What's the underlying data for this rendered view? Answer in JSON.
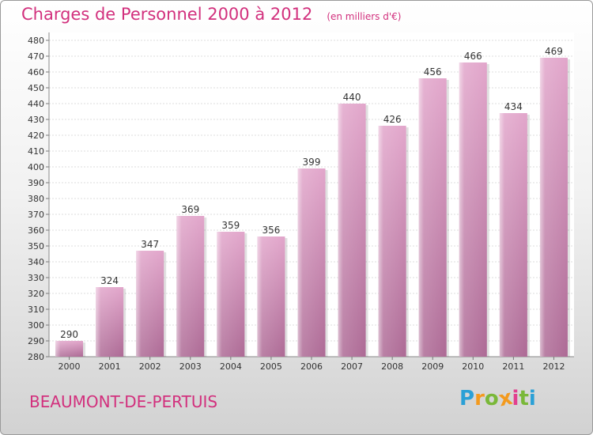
{
  "title": "Charges de Personnel 2000 à 2012",
  "subtitle": "(en milliers d'€)",
  "commune": "BEAUMONT-DE-PERTUIS",
  "logo": {
    "letters": [
      "P",
      "r",
      "o",
      "x",
      "i",
      "t",
      "i"
    ],
    "colors": [
      "#2aa0d6",
      "#f39a1e",
      "#7ab839",
      "#f39a1e",
      "#e23f8f",
      "#7ab839",
      "#2aa0d6"
    ]
  },
  "colors": {
    "bar_top": "#e2a6cb",
    "bar_bottom": "#ad6a95",
    "title": "#d2307d"
  },
  "chart_data": {
    "type": "bar",
    "categories": [
      "2000",
      "2001",
      "2002",
      "2003",
      "2004",
      "2005",
      "2006",
      "2007",
      "2008",
      "2009",
      "2010",
      "2011",
      "2012"
    ],
    "values": [
      290,
      324,
      347,
      369,
      359,
      356,
      399,
      440,
      426,
      456,
      466,
      434,
      469
    ],
    "title": "Charges de Personnel 2000 à 2012",
    "xlabel": "",
    "ylabel": "",
    "ylim": [
      280,
      480
    ],
    "yticks": [
      280,
      290,
      300,
      310,
      320,
      330,
      340,
      350,
      360,
      370,
      380,
      390,
      400,
      410,
      420,
      430,
      440,
      450,
      460,
      470,
      480
    ],
    "grid": true,
    "data_labels": true
  }
}
